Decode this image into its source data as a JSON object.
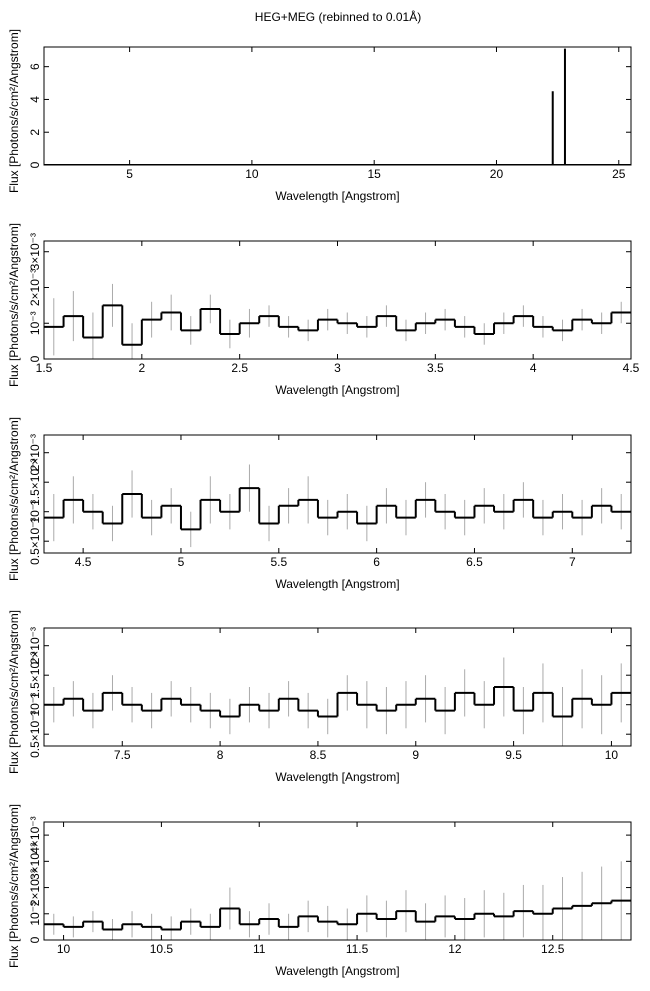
{
  "title": "HEG+MEG (rebinned to 0.01Å)",
  "chart_data": [
    {
      "type": "line",
      "xlabel": "Wavelength [Angstrom]",
      "ylabel": "Flux [Photons/s/cm²/Angstrom]",
      "color": "#000000",
      "x": [
        1.5,
        22.3,
        22.3,
        22.3,
        22.8,
        22.8,
        22.8,
        25.5
      ],
      "values": [
        0,
        0,
        4.5,
        0,
        0,
        7.1,
        0,
        0
      ],
      "xlim": [
        1.5,
        25.5
      ],
      "ylim": [
        0,
        7.2
      ],
      "xticks": [
        5,
        10,
        15,
        20,
        25
      ],
      "yticks": [
        0,
        2,
        4,
        6
      ]
    },
    {
      "type": "errorbar",
      "xlabel": "Wavelength [Angstrom]",
      "ylabel": "Flux [Photons/s/cm²/Angstrom]",
      "color": "#000000",
      "error_color": "#aaaaaa",
      "x": [
        1.55,
        1.65,
        1.75,
        1.85,
        1.95,
        2.05,
        2.15,
        2.25,
        2.35,
        2.45,
        2.55,
        2.65,
        2.75,
        2.85,
        2.95,
        3.05,
        3.15,
        3.25,
        3.35,
        3.45,
        3.55,
        3.65,
        3.75,
        3.85,
        3.95,
        4.05,
        4.15,
        4.25,
        4.35,
        4.45
      ],
      "values": [
        0.0009,
        0.0012,
        0.0006,
        0.0015,
        0.0004,
        0.0011,
        0.0013,
        0.0008,
        0.0014,
        0.0007,
        0.001,
        0.0012,
        0.0009,
        0.0008,
        0.0011,
        0.001,
        0.0009,
        0.0012,
        0.0008,
        0.001,
        0.0011,
        0.0009,
        0.0007,
        0.001,
        0.0012,
        0.0009,
        0.0008,
        0.0011,
        0.001,
        0.0013
      ],
      "errors": [
        0.0008,
        0.0007,
        0.0007,
        0.0006,
        0.0006,
        0.0005,
        0.0005,
        0.0004,
        0.0004,
        0.0004,
        0.0004,
        0.0003,
        0.0003,
        0.0003,
        0.0003,
        0.0003,
        0.0003,
        0.0003,
        0.0003,
        0.0003,
        0.0003,
        0.0003,
        0.0003,
        0.0003,
        0.0003,
        0.0003,
        0.0003,
        0.0003,
        0.0003,
        0.0003
      ],
      "xlim": [
        1.5,
        4.5
      ],
      "ylim": [
        0,
        0.0033
      ],
      "xticks": [
        1.5,
        2,
        2.5,
        3,
        3.5,
        4,
        4.5
      ],
      "yticks": [
        0,
        {
          "value": 0.001,
          "label": "10⁻³"
        },
        {
          "value": 0.002,
          "label": "2×10⁻³"
        },
        {
          "value": 0.003,
          "label": "3×10⁻³"
        }
      ]
    },
    {
      "type": "errorbar",
      "xlabel": "Wavelength [Angstrom]",
      "ylabel": "Flux [Photons/s/cm²/Angstrom]",
      "color": "#000000",
      "error_color": "#aaaaaa",
      "x": [
        4.35,
        4.45,
        4.55,
        4.65,
        4.75,
        4.85,
        4.95,
        5.05,
        5.15,
        5.25,
        5.35,
        5.45,
        5.55,
        5.65,
        5.75,
        5.85,
        5.95,
        6.05,
        6.15,
        6.25,
        6.35,
        6.45,
        6.55,
        6.65,
        6.75,
        6.85,
        6.95,
        7.05,
        7.15,
        7.25
      ],
      "values": [
        0.0009,
        0.0012,
        0.001,
        0.0008,
        0.0013,
        0.0009,
        0.0011,
        0.0007,
        0.0012,
        0.001,
        0.0014,
        0.0008,
        0.0011,
        0.0012,
        0.0009,
        0.001,
        0.0008,
        0.0011,
        0.0009,
        0.0012,
        0.001,
        0.0009,
        0.0011,
        0.001,
        0.0012,
        0.0009,
        0.001,
        0.0009,
        0.0011,
        0.001
      ],
      "errors": [
        0.0004,
        0.0004,
        0.0003,
        0.0003,
        0.0004,
        0.0003,
        0.0003,
        0.0003,
        0.0004,
        0.0003,
        0.0004,
        0.0003,
        0.0003,
        0.0004,
        0.0003,
        0.0003,
        0.0003,
        0.0003,
        0.0003,
        0.0003,
        0.0003,
        0.0003,
        0.0003,
        0.0003,
        0.0003,
        0.0003,
        0.0003,
        0.0003,
        0.0003,
        0.0003
      ],
      "xlim": [
        4.3,
        7.3
      ],
      "ylim": [
        0.0003,
        0.0023
      ],
      "xticks": [
        4.5,
        5,
        5.5,
        6,
        6.5,
        7
      ],
      "yticks": [
        {
          "value": 0.0005,
          "label": "0.5×10⁻³"
        },
        {
          "value": 0.001,
          "label": "10⁻³"
        },
        {
          "value": 0.0015,
          "label": "1.5×10⁻³"
        },
        {
          "value": 0.002,
          "label": "2×10⁻³"
        }
      ]
    },
    {
      "type": "errorbar",
      "xlabel": "Wavelength [Angstrom]",
      "ylabel": "Flux [Photons/s/cm²/Angstrom]",
      "color": "#000000",
      "error_color": "#aaaaaa",
      "x": [
        7.15,
        7.25,
        7.35,
        7.45,
        7.55,
        7.65,
        7.75,
        7.85,
        7.95,
        8.05,
        8.15,
        8.25,
        8.35,
        8.45,
        8.55,
        8.65,
        8.75,
        8.85,
        8.95,
        9.05,
        9.15,
        9.25,
        9.35,
        9.45,
        9.55,
        9.65,
        9.75,
        9.85,
        9.95,
        10.05
      ],
      "values": [
        0.001,
        0.0011,
        0.0009,
        0.0012,
        0.001,
        0.0009,
        0.0011,
        0.001,
        0.0009,
        0.0008,
        0.001,
        0.0009,
        0.0011,
        0.0009,
        0.0008,
        0.0012,
        0.001,
        0.0009,
        0.001,
        0.0011,
        0.0009,
        0.0012,
        0.001,
        0.0013,
        0.0009,
        0.0012,
        0.0008,
        0.0011,
        0.001,
        0.0012
      ],
      "errors": [
        0.0003,
        0.0003,
        0.0003,
        0.0003,
        0.0003,
        0.0003,
        0.0003,
        0.0003,
        0.0003,
        0.0003,
        0.0003,
        0.0003,
        0.0003,
        0.0003,
        0.0003,
        0.0003,
        0.0004,
        0.0004,
        0.0004,
        0.0004,
        0.0004,
        0.0004,
        0.0004,
        0.0005,
        0.0004,
        0.0005,
        0.0005,
        0.0005,
        0.0005,
        0.0005
      ],
      "xlim": [
        7.1,
        10.1
      ],
      "ylim": [
        0.0003,
        0.0023
      ],
      "xticks": [
        7.5,
        8,
        8.5,
        9,
        9.5,
        10
      ],
      "yticks": [
        {
          "value": 0.0005,
          "label": "0.5×10⁻³"
        },
        {
          "value": 0.001,
          "label": "10⁻³"
        },
        {
          "value": 0.0015,
          "label": "1.5×10⁻³"
        },
        {
          "value": 0.002,
          "label": "2×10⁻³"
        }
      ]
    },
    {
      "type": "errorbar",
      "xlabel": "Wavelength [Angstrom]",
      "ylabel": "Flux [Photons/s/cm²/Angstrom]",
      "color": "#000000",
      "error_color": "#aaaaaa",
      "x": [
        9.95,
        10.05,
        10.15,
        10.25,
        10.35,
        10.45,
        10.55,
        10.65,
        10.75,
        10.85,
        10.95,
        11.05,
        11.15,
        11.25,
        11.35,
        11.45,
        11.55,
        11.65,
        11.75,
        11.85,
        11.95,
        12.05,
        12.15,
        12.25,
        12.35,
        12.45,
        12.55,
        12.65,
        12.75,
        12.85
      ],
      "values": [
        0.0006,
        0.0005,
        0.0007,
        0.0004,
        0.0006,
        0.0005,
        0.0004,
        0.0007,
        0.0005,
        0.0012,
        0.0006,
        0.0008,
        0.0005,
        0.0009,
        0.0007,
        0.0006,
        0.001,
        0.0008,
        0.0011,
        0.0007,
        0.0009,
        0.0008,
        0.001,
        0.0009,
        0.0011,
        0.001,
        0.0012,
        0.0013,
        0.0014,
        0.0015
      ],
      "errors": [
        0.0004,
        0.0004,
        0.0004,
        0.0004,
        0.0005,
        0.0005,
        0.0005,
        0.0005,
        0.0005,
        0.0008,
        0.0005,
        0.0006,
        0.0005,
        0.0006,
        0.0006,
        0.0006,
        0.0007,
        0.0007,
        0.0008,
        0.0007,
        0.0008,
        0.0008,
        0.0009,
        0.0009,
        0.001,
        0.0011,
        0.0012,
        0.0013,
        0.0014,
        0.0015
      ],
      "xlim": [
        9.9,
        12.9
      ],
      "ylim": [
        0,
        0.0045
      ],
      "xticks": [
        10,
        10.5,
        11,
        11.5,
        12,
        12.5
      ],
      "yticks": [
        0,
        {
          "value": 0.001,
          "label": "10⁻³"
        },
        {
          "value": 0.002,
          "label": "2×10⁻³"
        },
        {
          "value": 0.003,
          "label": "3×10⁻³"
        },
        {
          "value": 0.004,
          "label": "4×10⁻³"
        }
      ]
    }
  ]
}
